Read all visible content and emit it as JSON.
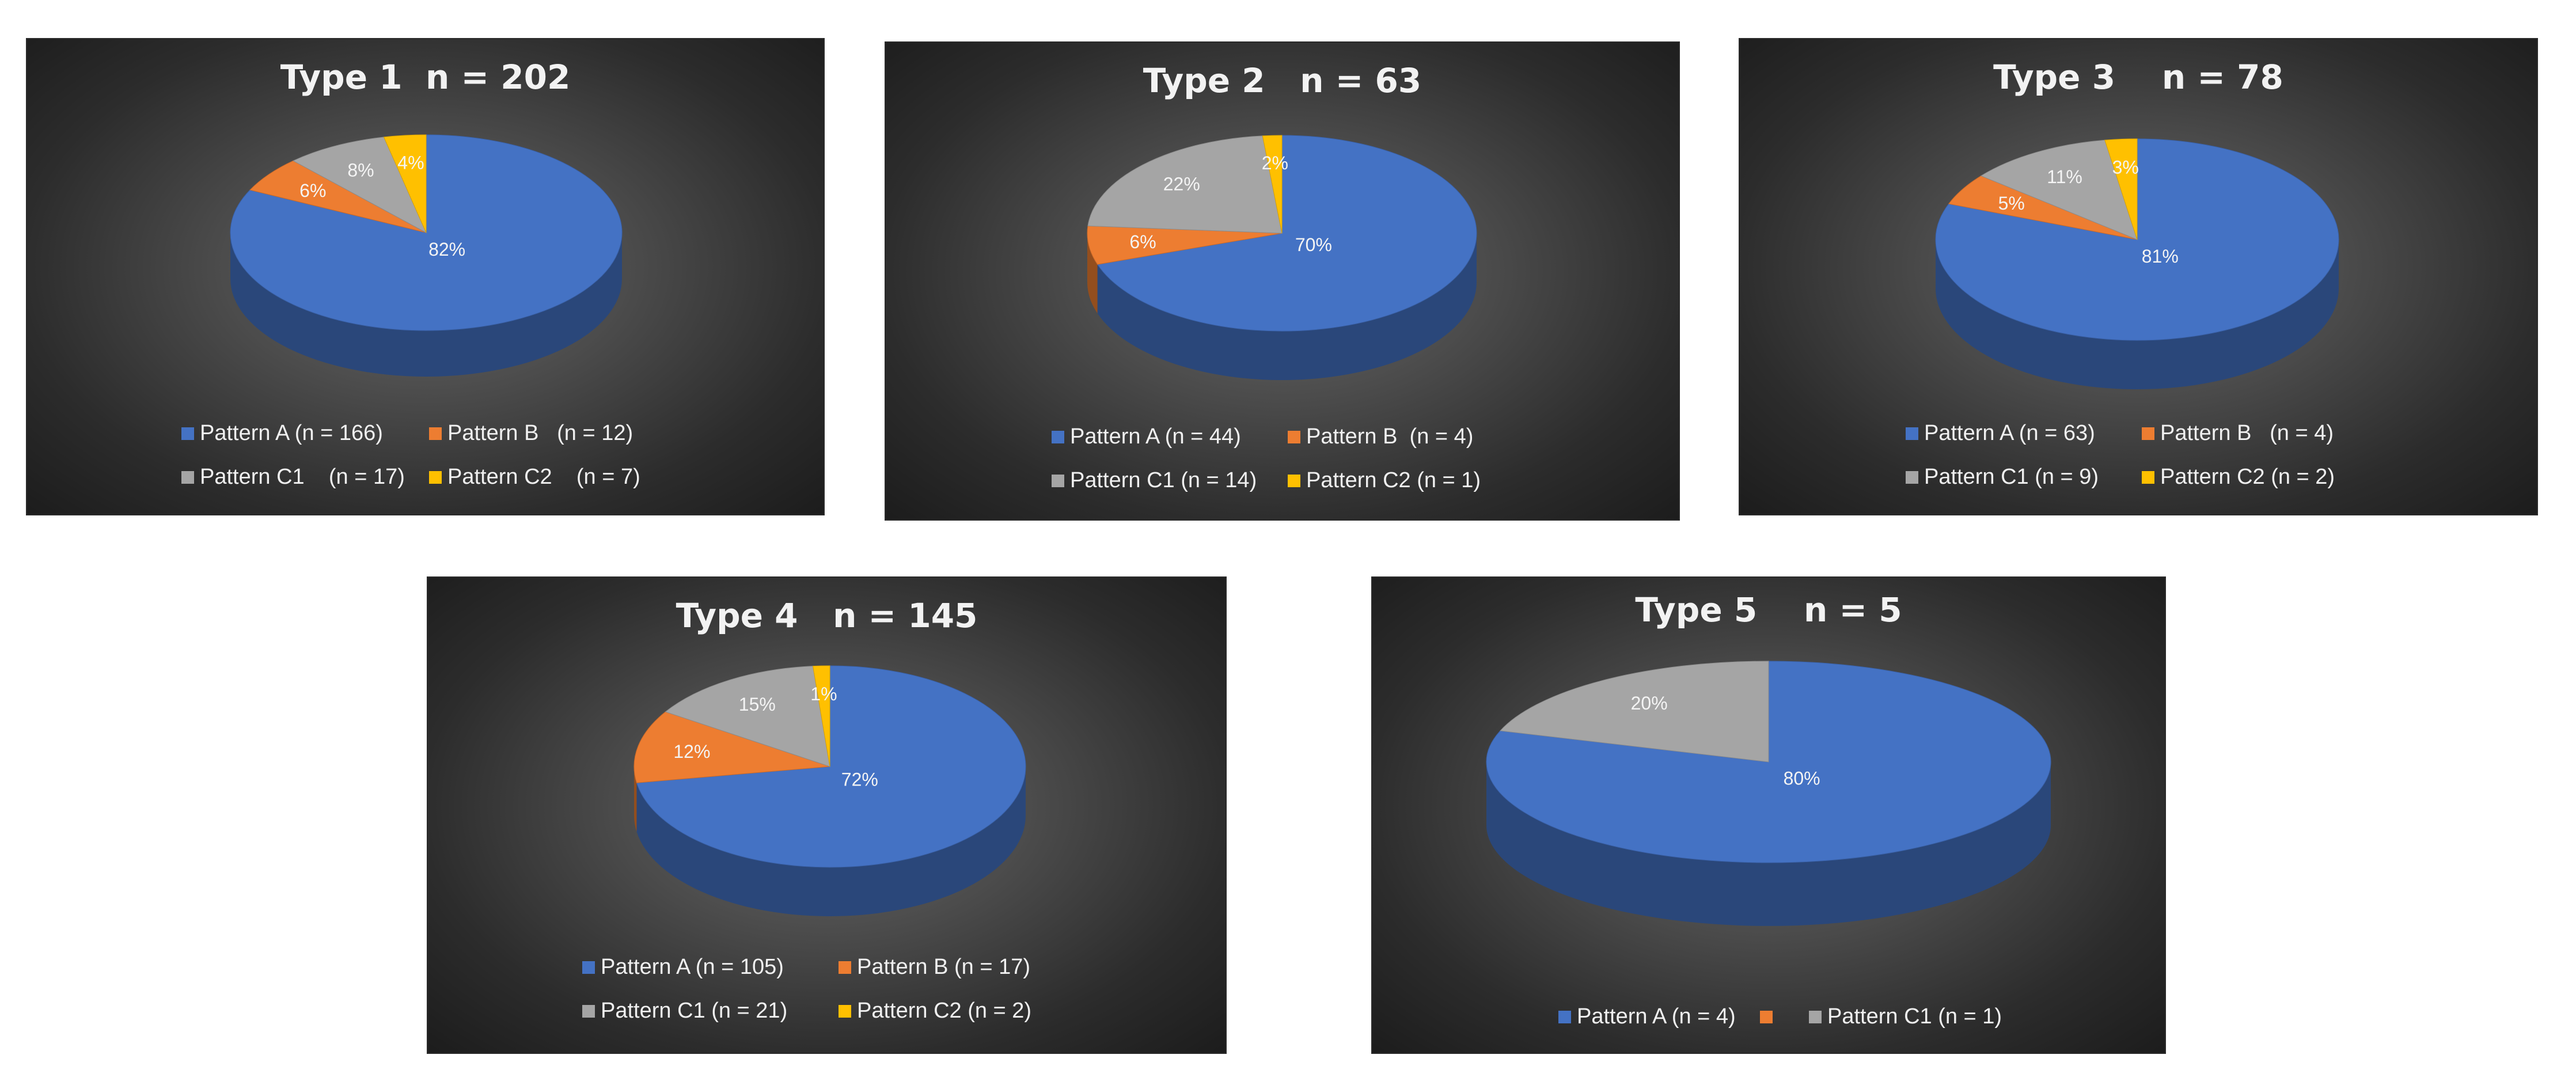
{
  "chart_data": [
    {
      "type": "pie",
      "title": "Type 1  n = 202",
      "slices": [
        {
          "label": "Pattern A (n = 166)",
          "value": 166,
          "pct_label": "82%",
          "color": "#4472c4"
        },
        {
          "label": "Pattern B   (n = 12)",
          "value": 12,
          "pct_label": "6%",
          "color": "#ed7d31"
        },
        {
          "label": "Pattern C1    (n = 17)",
          "value": 17,
          "pct_label": "8%",
          "color": "#a5a5a5"
        },
        {
          "label": "Pattern C2    (n = 7)",
          "value": 7,
          "pct_label": "4%",
          "color": "#ffc000"
        }
      ]
    },
    {
      "type": "pie",
      "title": "Type 2   n = 63",
      "slices": [
        {
          "label": "Pattern A (n = 44)",
          "value": 44,
          "pct_label": "70%",
          "color": "#4472c4"
        },
        {
          "label": "Pattern B  (n = 4)",
          "value": 4,
          "pct_label": "6%",
          "color": "#ed7d31"
        },
        {
          "label": "Pattern C1 (n = 14)",
          "value": 14,
          "pct_label": "22%",
          "color": "#a5a5a5"
        },
        {
          "label": "Pattern C2 (n = 1)",
          "value": 1,
          "pct_label": "2%",
          "color": "#ffc000"
        }
      ]
    },
    {
      "type": "pie",
      "title": "Type 3    n = 78",
      "slices": [
        {
          "label": "Pattern A (n = 63)",
          "value": 63,
          "pct_label": "81%",
          "color": "#4472c4"
        },
        {
          "label": "Pattern B   (n = 4)",
          "value": 4,
          "pct_label": "5%",
          "color": "#ed7d31"
        },
        {
          "label": "Pattern C1 (n = 9)",
          "value": 9,
          "pct_label": "11%",
          "color": "#a5a5a5"
        },
        {
          "label": "Pattern C2 (n = 2)",
          "value": 2,
          "pct_label": "3%",
          "color": "#ffc000"
        }
      ]
    },
    {
      "type": "pie",
      "title": "Type 4   n = 145",
      "slices": [
        {
          "label": "Pattern A (n = 105)",
          "value": 105,
          "pct_label": "72%",
          "color": "#4472c4"
        },
        {
          "label": "Pattern B (n = 17)",
          "value": 17,
          "pct_label": "12%",
          "color": "#ed7d31"
        },
        {
          "label": "Pattern C1 (n = 21)",
          "value": 21,
          "pct_label": "15%",
          "color": "#a5a5a5"
        },
        {
          "label": "Pattern C2 (n = 2)",
          "value": 2,
          "pct_label": "1%",
          "color": "#ffc000"
        }
      ]
    },
    {
      "type": "pie",
      "title": "Type 5    n = 5",
      "slices": [
        {
          "label": "Pattern A (n = 4)",
          "value": 4,
          "pct_label": "80%",
          "color": "#4472c4"
        },
        {
          "label": "",
          "value": 0,
          "pct_label": "",
          "color": "#ed7d31"
        },
        {
          "label": "Pattern C1 (n = 1)",
          "value": 1,
          "pct_label": "20%",
          "color": "#a5a5a5"
        }
      ]
    }
  ]
}
